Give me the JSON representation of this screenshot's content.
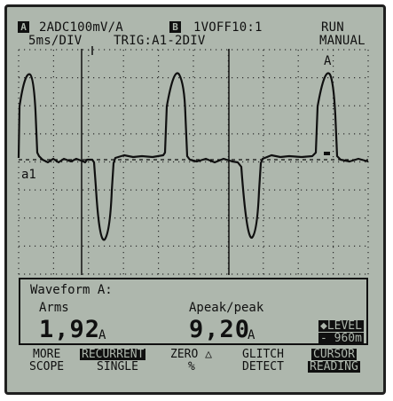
{
  "header": {
    "channel_a_badge": "A",
    "channel_a_setting": "2ADC100mV/A",
    "channel_b_badge": "B",
    "channel_b_setting": "1VOFF10:1",
    "run_state": "RUN",
    "timebase": "5ms/DIV",
    "trigger": "TRIG:A1-2DIV",
    "mode": "MANUAL"
  },
  "trace": {
    "label_a": "A",
    "label_a1": "a1"
  },
  "measurement": {
    "title": "Waveform A:",
    "arms_label": "Arms",
    "arms_value": "1,92",
    "arms_unit": "A",
    "apeak_label": "Apeak/peak",
    "apeak_value": "9,20",
    "apeak_unit": "A",
    "level_line1": "◆LEVEL",
    "level_line2": "- 960m"
  },
  "softkeys": [
    {
      "line1": "MORE",
      "line2": "SCOPE",
      "line1_inverted": false,
      "line2_inverted": false
    },
    {
      "line1": "RECURRENT",
      "line2": "SINGLE",
      "line1_inverted": true,
      "line2_inverted": false
    },
    {
      "line1": "ZERO △",
      "line2": "%",
      "line1_inverted": false,
      "line2_inverted": false
    },
    {
      "line1": "GLITCH",
      "line2": "DETECT",
      "line1_inverted": false,
      "line2_inverted": false
    },
    {
      "line1": "CURSOR",
      "line2": "READING",
      "line1_inverted": true,
      "line2_inverted": true
    }
  ],
  "colors": {
    "screen_background": "#aeb7ad",
    "foreground": "#101010"
  }
}
